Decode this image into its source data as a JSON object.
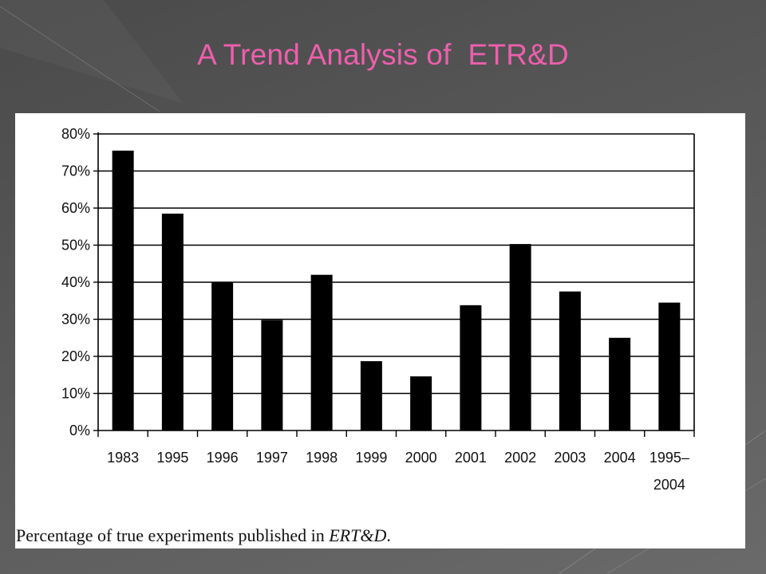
{
  "slide": {
    "title": "A Trend Analysis of  ETR&D"
  },
  "figure": {
    "caption_text": "Percentage of true experiments published in ",
    "caption_journal": "ERT&D",
    "caption_end": "."
  },
  "chart_data": {
    "type": "bar",
    "categories": [
      "1983",
      "1995",
      "1996",
      "1997",
      "1998",
      "1999",
      "2000",
      "2001",
      "2002",
      "2003",
      "2004",
      "1995–2004"
    ],
    "category_lines": [
      [
        "1983"
      ],
      [
        "1995"
      ],
      [
        "1996"
      ],
      [
        "1997"
      ],
      [
        "1998"
      ],
      [
        "1999"
      ],
      [
        "2000"
      ],
      [
        "2001"
      ],
      [
        "2002"
      ],
      [
        "2003"
      ],
      [
        "2004"
      ],
      [
        "1995–",
        "2004"
      ]
    ],
    "values": [
      75.5,
      58.5,
      40,
      29.8,
      42,
      18.7,
      14.6,
      33.8,
      50.3,
      37.5,
      25,
      34.5
    ],
    "y_tick_labels": [
      "0%",
      "10%",
      "20%",
      "30%",
      "40%",
      "50%",
      "60%",
      "70%",
      "80%"
    ],
    "ylim": [
      0,
      80
    ],
    "y_unit": "%",
    "bar_color": "#000000",
    "grid": true
  }
}
